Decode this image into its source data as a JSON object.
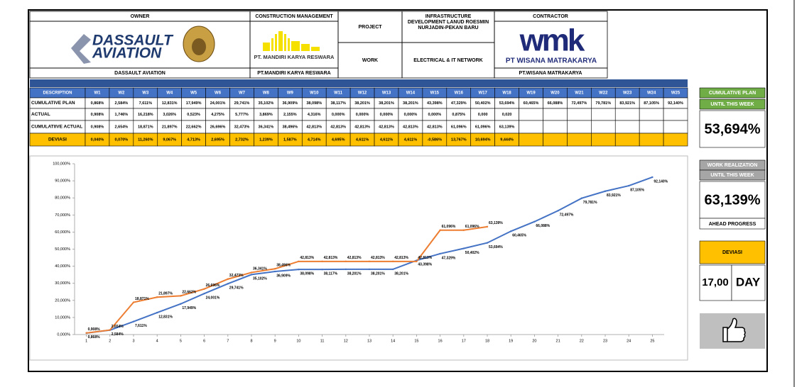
{
  "header": {
    "owner": "OWNER",
    "cm": "CONSTRUCTION MANAGEMENT",
    "project_label": "PROJECT",
    "project_lines": [
      "INFRASTRUCTURE",
      "DEVELOPMENT LANUD ROESMIN",
      "NURJADIN-PEKAN BARU"
    ],
    "contractor": "CONTRACTOR",
    "owner_logo": [
      "DASSAULT",
      "AVIATION"
    ],
    "owner_name": "DASSAULT AVIATION",
    "cm_logo": "PT. MANDIRI KARYA RESWARA",
    "cm_name": "PT.MANDIRI KARYA RESWARA",
    "work_label": "WORK",
    "work": "ELECTRICAL & IT NETWORK",
    "contractor_logo": [
      "wmk",
      "PT WISANA MATRAKARYA"
    ],
    "contractor_name": "PT.WISANA MATRAKARYA"
  },
  "table": {
    "columns": [
      "DESCRIPTION",
      "W1",
      "W2",
      "W3",
      "W4",
      "W5",
      "W6",
      "W7",
      "W8",
      "W9",
      "W10",
      "W11",
      "W12",
      "W13",
      "W14",
      "W15",
      "W16",
      "W17",
      "W18",
      "W19",
      "W20",
      "W21",
      "W22",
      "W23",
      "W24",
      "W25"
    ],
    "rows": [
      {
        "label": "CUMULATIVE PLAN",
        "cells": [
          "0,868%",
          "2,584%",
          "7,611%",
          "12,831%",
          "17,949%",
          "24,001%",
          "29,741%",
          "35,102%",
          "36,909%",
          "38,098%",
          "38,117%",
          "38,201%",
          "38,201%",
          "38,201%",
          "43,398%",
          "47,329%",
          "50,402%",
          "53,694%",
          "60,465%",
          "66,088%",
          "72,497%",
          "79,781%",
          "83,921%",
          "87,105%",
          "92,140%"
        ]
      },
      {
        "label": "ACTUAL",
        "cells": [
          "0,908%",
          "1,746%",
          "16,218%",
          "3,026%",
          "0,523%",
          "4,275%",
          "5,777%",
          "3,869%",
          "2,155%",
          "4,316%",
          "0,000%",
          "0,000%",
          "0,000%",
          "0,000%",
          "0,000%",
          "0,875%",
          "0,000",
          "0,020"
        ]
      },
      {
        "label": "CUMULATIIVE ACTUAL",
        "cells": [
          "0,908%",
          "2,654%",
          "18,871%",
          "21,897%",
          "22,662%",
          "26,696%",
          "32,473%",
          "36,341%",
          "38,496%",
          "42,813%",
          "42,813%",
          "42,813%",
          "42,813%",
          "42,813%",
          "42,813%",
          "61,096%",
          "61,096%",
          "63,139%"
        ]
      },
      {
        "label": "DEVIASI",
        "cells": [
          "0,040%",
          "0,070%",
          "11,260%",
          "9,067%",
          "4,713%",
          "2,695%",
          "2,732%",
          "1,239%",
          "1,587%",
          "4,714%",
          "4,695%",
          "4,611%",
          "4,611%",
          "4,611%",
          "-0,586%",
          "13,767%",
          "10,694%",
          "9,444%"
        ]
      }
    ]
  },
  "chart_data": {
    "type": "line",
    "x": [
      1,
      2,
      3,
      4,
      5,
      6,
      7,
      8,
      9,
      10,
      11,
      12,
      13,
      14,
      15,
      16,
      17,
      18,
      19,
      20,
      21,
      22,
      23,
      24,
      25
    ],
    "xlim": [
      0.5,
      25.5
    ],
    "xticks": [
      1,
      2,
      3,
      4,
      5,
      6,
      7,
      8,
      9,
      10,
      11,
      12,
      13,
      14,
      15,
      16,
      17,
      18,
      19,
      20,
      21,
      22,
      23,
      24,
      25
    ],
    "ylim": [
      0,
      100
    ],
    "yticks": [
      {
        "value": 0,
        "label": "0,000%"
      },
      {
        "value": 10,
        "label": "10,000%"
      },
      {
        "value": 20,
        "label": "20,000%"
      },
      {
        "value": 30,
        "label": "30,000%"
      },
      {
        "value": 40,
        "label": "40,000%"
      },
      {
        "value": 50,
        "label": "50,000%"
      },
      {
        "value": 60,
        "label": "60,000%"
      },
      {
        "value": 70,
        "label": "70,000%"
      },
      {
        "value": 80,
        "label": "80,000%"
      },
      {
        "value": 90,
        "label": "90,000%"
      },
      {
        "value": 100,
        "label": "100,000%"
      }
    ],
    "grid": false,
    "series": [
      {
        "color": "#4472c4",
        "values": [
          0.868,
          2.584,
          7.611,
          12.831,
          17.949,
          24.001,
          29.741,
          35.102,
          36.909,
          38.098,
          38.117,
          38.201,
          38.201,
          38.201,
          43.398,
          47.329,
          50.402,
          53.694,
          60.465,
          66.088,
          72.497,
          79.781,
          83.921,
          87.105,
          92.14
        ],
        "value_labels": [
          "0,868%",
          "2,584%",
          "7,611%",
          "12,831%",
          "17,949%",
          "24,001%",
          "29,741%",
          "35,102%",
          "36,909%",
          "38,098%",
          "38,117%",
          "38,201%",
          "38,201%",
          "38,201%",
          "43,398%",
          "47,329%",
          "50,402%",
          "53,694%",
          "60,465%",
          "66,088%",
          "72,497%",
          "79,781%",
          "83,921%",
          "87,105%",
          "92,140%"
        ]
      },
      {
        "color": "#ed7d31",
        "values": [
          0.908,
          2.654,
          18.871,
          21.897,
          22.662,
          26.696,
          32.473,
          36.341,
          38.496,
          42.813,
          42.813,
          42.813,
          42.813,
          42.813,
          42.813,
          61.096,
          61.096,
          63.139,
          null,
          null,
          null,
          null,
          null,
          null,
          null
        ],
        "value_labels": [
          "0,908%",
          "2,654%",
          "18,871%",
          "21,897%",
          "22,662%",
          "26,696%",
          "32,473%",
          "36,341%",
          "38,496%",
          "42,813%",
          "42,813%",
          "42,813%",
          "42,813%",
          "42,813%",
          "42,813%",
          "61,096%",
          "61,096%",
          "63,139%",
          null,
          null,
          null,
          null,
          null,
          null,
          null
        ]
      }
    ]
  },
  "summary": {
    "plan_title": "CUMULATIVE PLAN",
    "plan_sub": "UNTIL THIS WEEK",
    "plan_value": "53,694%",
    "real_title": "WORK REALIZATION",
    "real_sub": "UNTIL THIS WEEK",
    "real_value": "63,139%",
    "status": "AHEAD PROGRESS",
    "dev_title": "DEVIASI",
    "dev_value": "17,00",
    "dev_unit": "DAY"
  }
}
